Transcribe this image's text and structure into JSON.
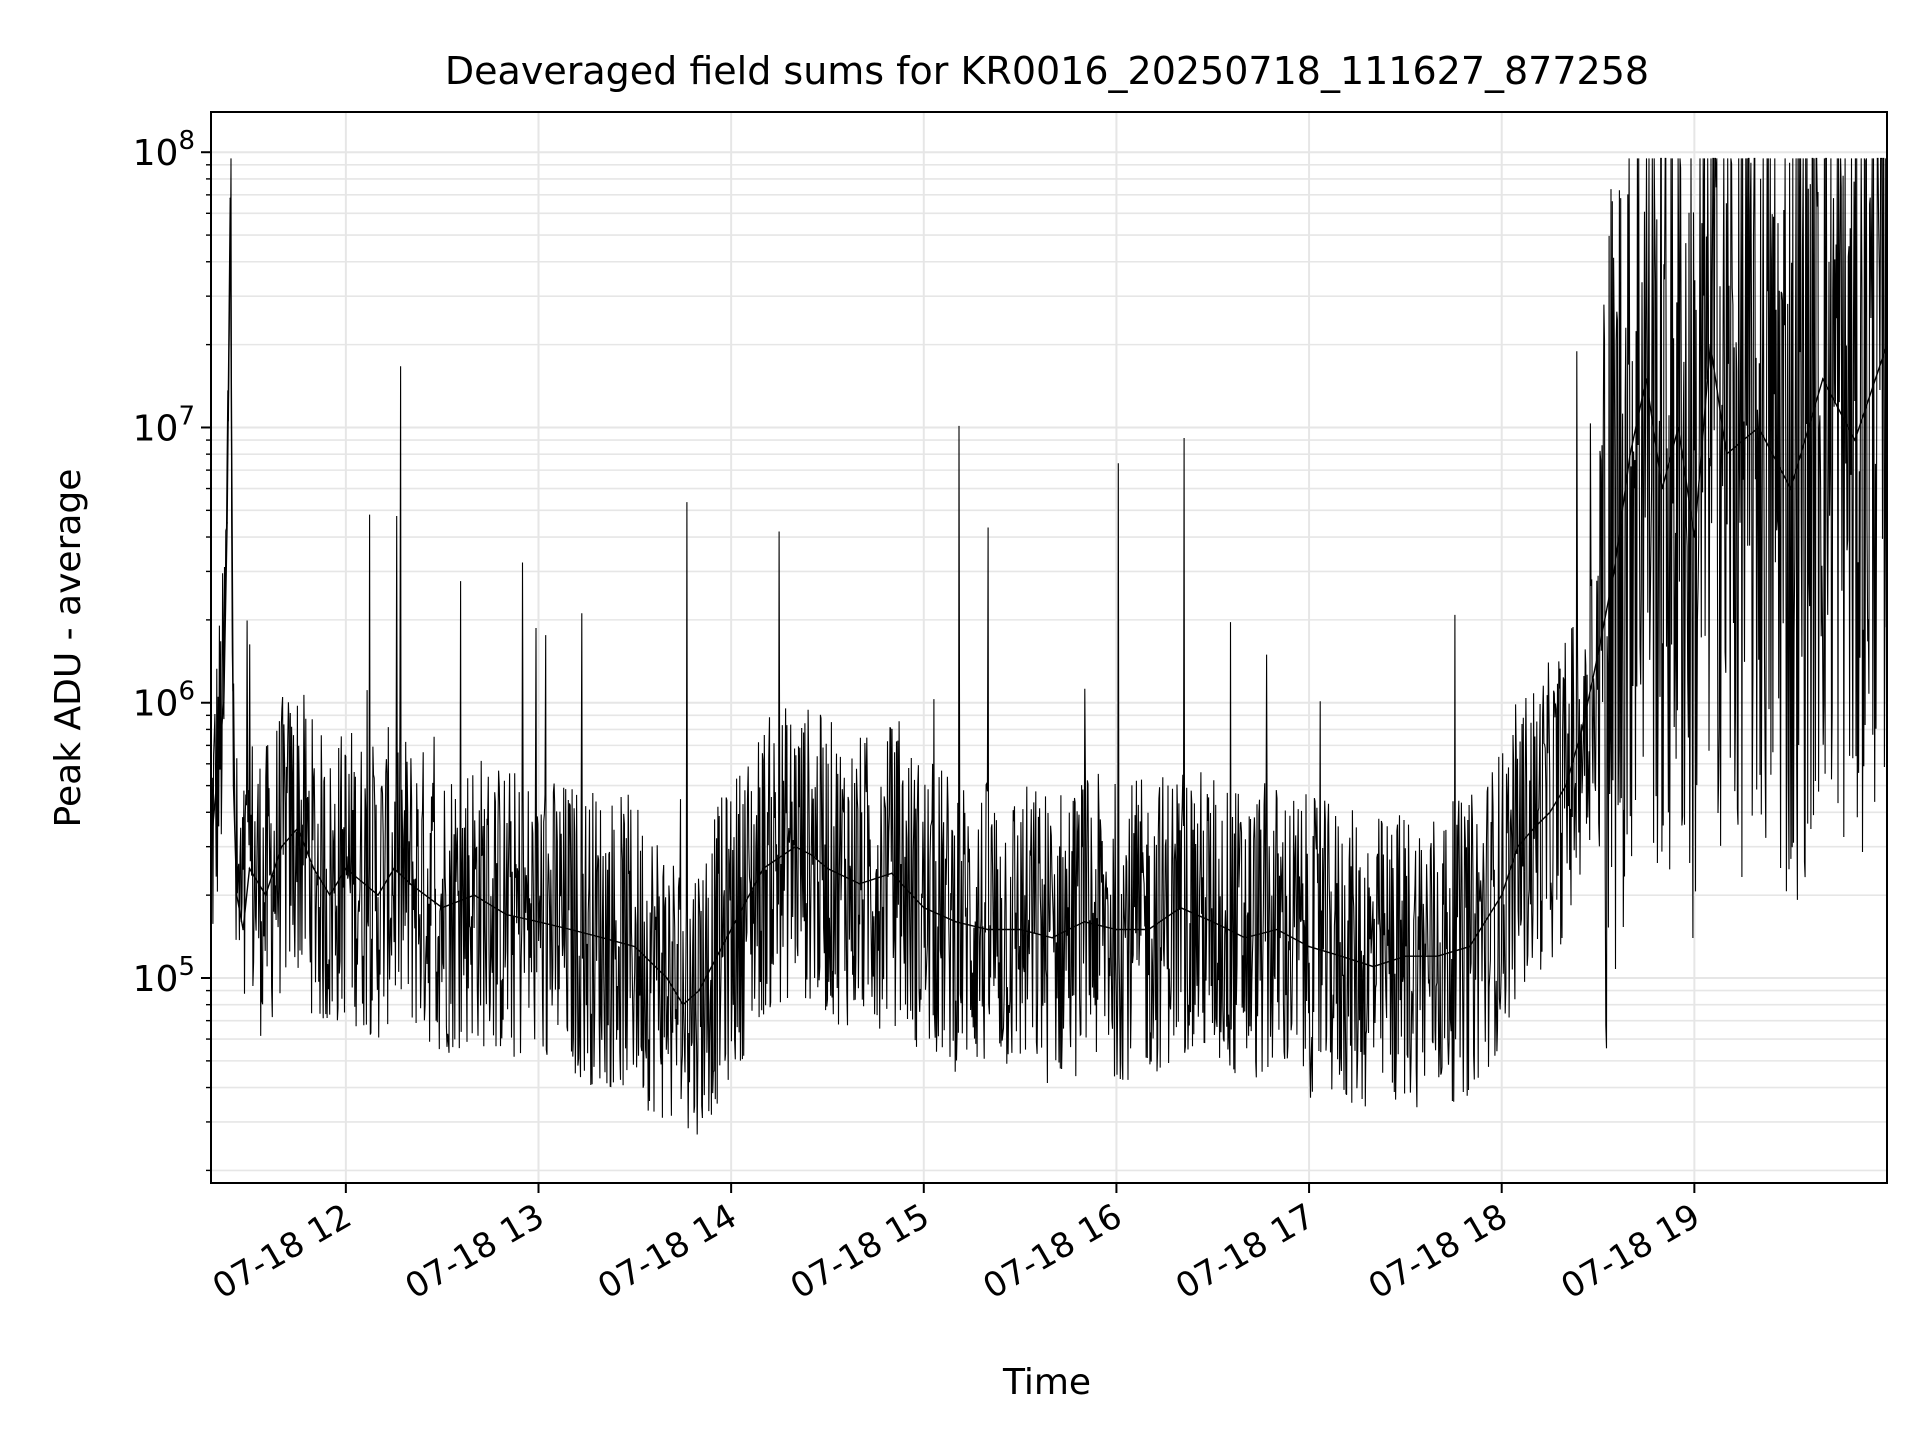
{
  "chart_data": {
    "type": "line",
    "title": "Deaveraged field sums for KR0016_20250718_111627_877258",
    "xlabel": "Time",
    "ylabel": "Peak ADU - average",
    "yscale": "log",
    "ylim": [
      18000,
      140000000
    ],
    "xlim": [
      "07-18 11:18",
      "07-18 20:00"
    ],
    "grid": true,
    "x_ticks": [
      {
        "t": "07-18 12:00",
        "label": "07-18 12"
      },
      {
        "t": "07-18 13:00",
        "label": "07-18 13"
      },
      {
        "t": "07-18 14:00",
        "label": "07-18 14"
      },
      {
        "t": "07-18 15:00",
        "label": "07-18 15"
      },
      {
        "t": "07-18 16:00",
        "label": "07-18 16"
      },
      {
        "t": "07-18 17:00",
        "label": "07-18 17"
      },
      {
        "t": "07-18 18:00",
        "label": "07-18 18"
      },
      {
        "t": "07-18 19:00",
        "label": "07-18 19"
      }
    ],
    "y_ticks": [
      {
        "value": 100000,
        "base": "10",
        "exp": "5"
      },
      {
        "value": 1000000,
        "base": "10",
        "exp": "6"
      },
      {
        "value": 10000000,
        "base": "10",
        "exp": "7"
      },
      {
        "value": 100000000,
        "base": "10",
        "exp": "8"
      }
    ],
    "series": [
      {
        "color": "#000000",
        "x": [
          "07-18 11:18",
          "07-18 11:20",
          "07-18 11:22",
          "07-18 11:23",
          "07-18 11:24",
          "07-18 11:25",
          "07-18 11:26",
          "07-18 11:28",
          "07-18 11:30",
          "07-18 11:35",
          "07-18 11:40",
          "07-18 11:45",
          "07-18 11:50",
          "07-18 11:55",
          "07-18 12:00",
          "07-18 12:10",
          "07-18 12:15",
          "07-18 12:20",
          "07-18 12:30",
          "07-18 12:40",
          "07-18 12:50",
          "07-18 13:00",
          "07-18 13:10",
          "07-18 13:20",
          "07-18 13:30",
          "07-18 13:40",
          "07-18 13:45",
          "07-18 13:50",
          "07-18 14:00",
          "07-18 14:10",
          "07-18 14:20",
          "07-18 14:25",
          "07-18 14:30",
          "07-18 14:40",
          "07-18 14:50",
          "07-18 15:00",
          "07-18 15:10",
          "07-18 15:20",
          "07-18 15:30",
          "07-18 15:40",
          "07-18 15:50",
          "07-18 16:00",
          "07-18 16:10",
          "07-18 16:20",
          "07-18 16:30",
          "07-18 16:40",
          "07-18 16:50",
          "07-18 17:00",
          "07-18 17:10",
          "07-18 17:20",
          "07-18 17:30",
          "07-18 17:40",
          "07-18 17:50",
          "07-18 18:00",
          "07-18 18:05",
          "07-18 18:10",
          "07-18 18:15",
          "07-18 18:20",
          "07-18 18:25",
          "07-18 18:30",
          "07-18 18:35",
          "07-18 18:40",
          "07-18 18:45",
          "07-18 18:50",
          "07-18 18:55",
          "07-18 19:00",
          "07-18 19:05",
          "07-18 19:10",
          "07-18 19:20",
          "07-18 19:30",
          "07-18 19:40",
          "07-18 19:50",
          "07-18 20:00"
        ],
        "y": [
          300000,
          550000,
          1000000,
          4500000,
          68000000,
          500000,
          200000,
          150000,
          250000,
          200000,
          300000,
          350000,
          250000,
          200000,
          250000,
          200000,
          250000,
          220000,
          180000,
          200000,
          170000,
          160000,
          150000,
          140000,
          130000,
          100000,
          80000,
          90000,
          150000,
          250000,
          300000,
          280000,
          250000,
          220000,
          240000,
          180000,
          160000,
          150000,
          150000,
          140000,
          160000,
          150000,
          150000,
          180000,
          160000,
          140000,
          150000,
          130000,
          120000,
          110000,
          120000,
          120000,
          130000,
          200000,
          300000,
          350000,
          400000,
          500000,
          800000,
          1500000,
          3000000,
          8000000,
          15000000,
          6000000,
          10000000,
          4000000,
          20000000,
          8000000,
          10000000,
          6000000,
          15000000,
          9000000,
          20000000
        ]
      }
    ]
  }
}
